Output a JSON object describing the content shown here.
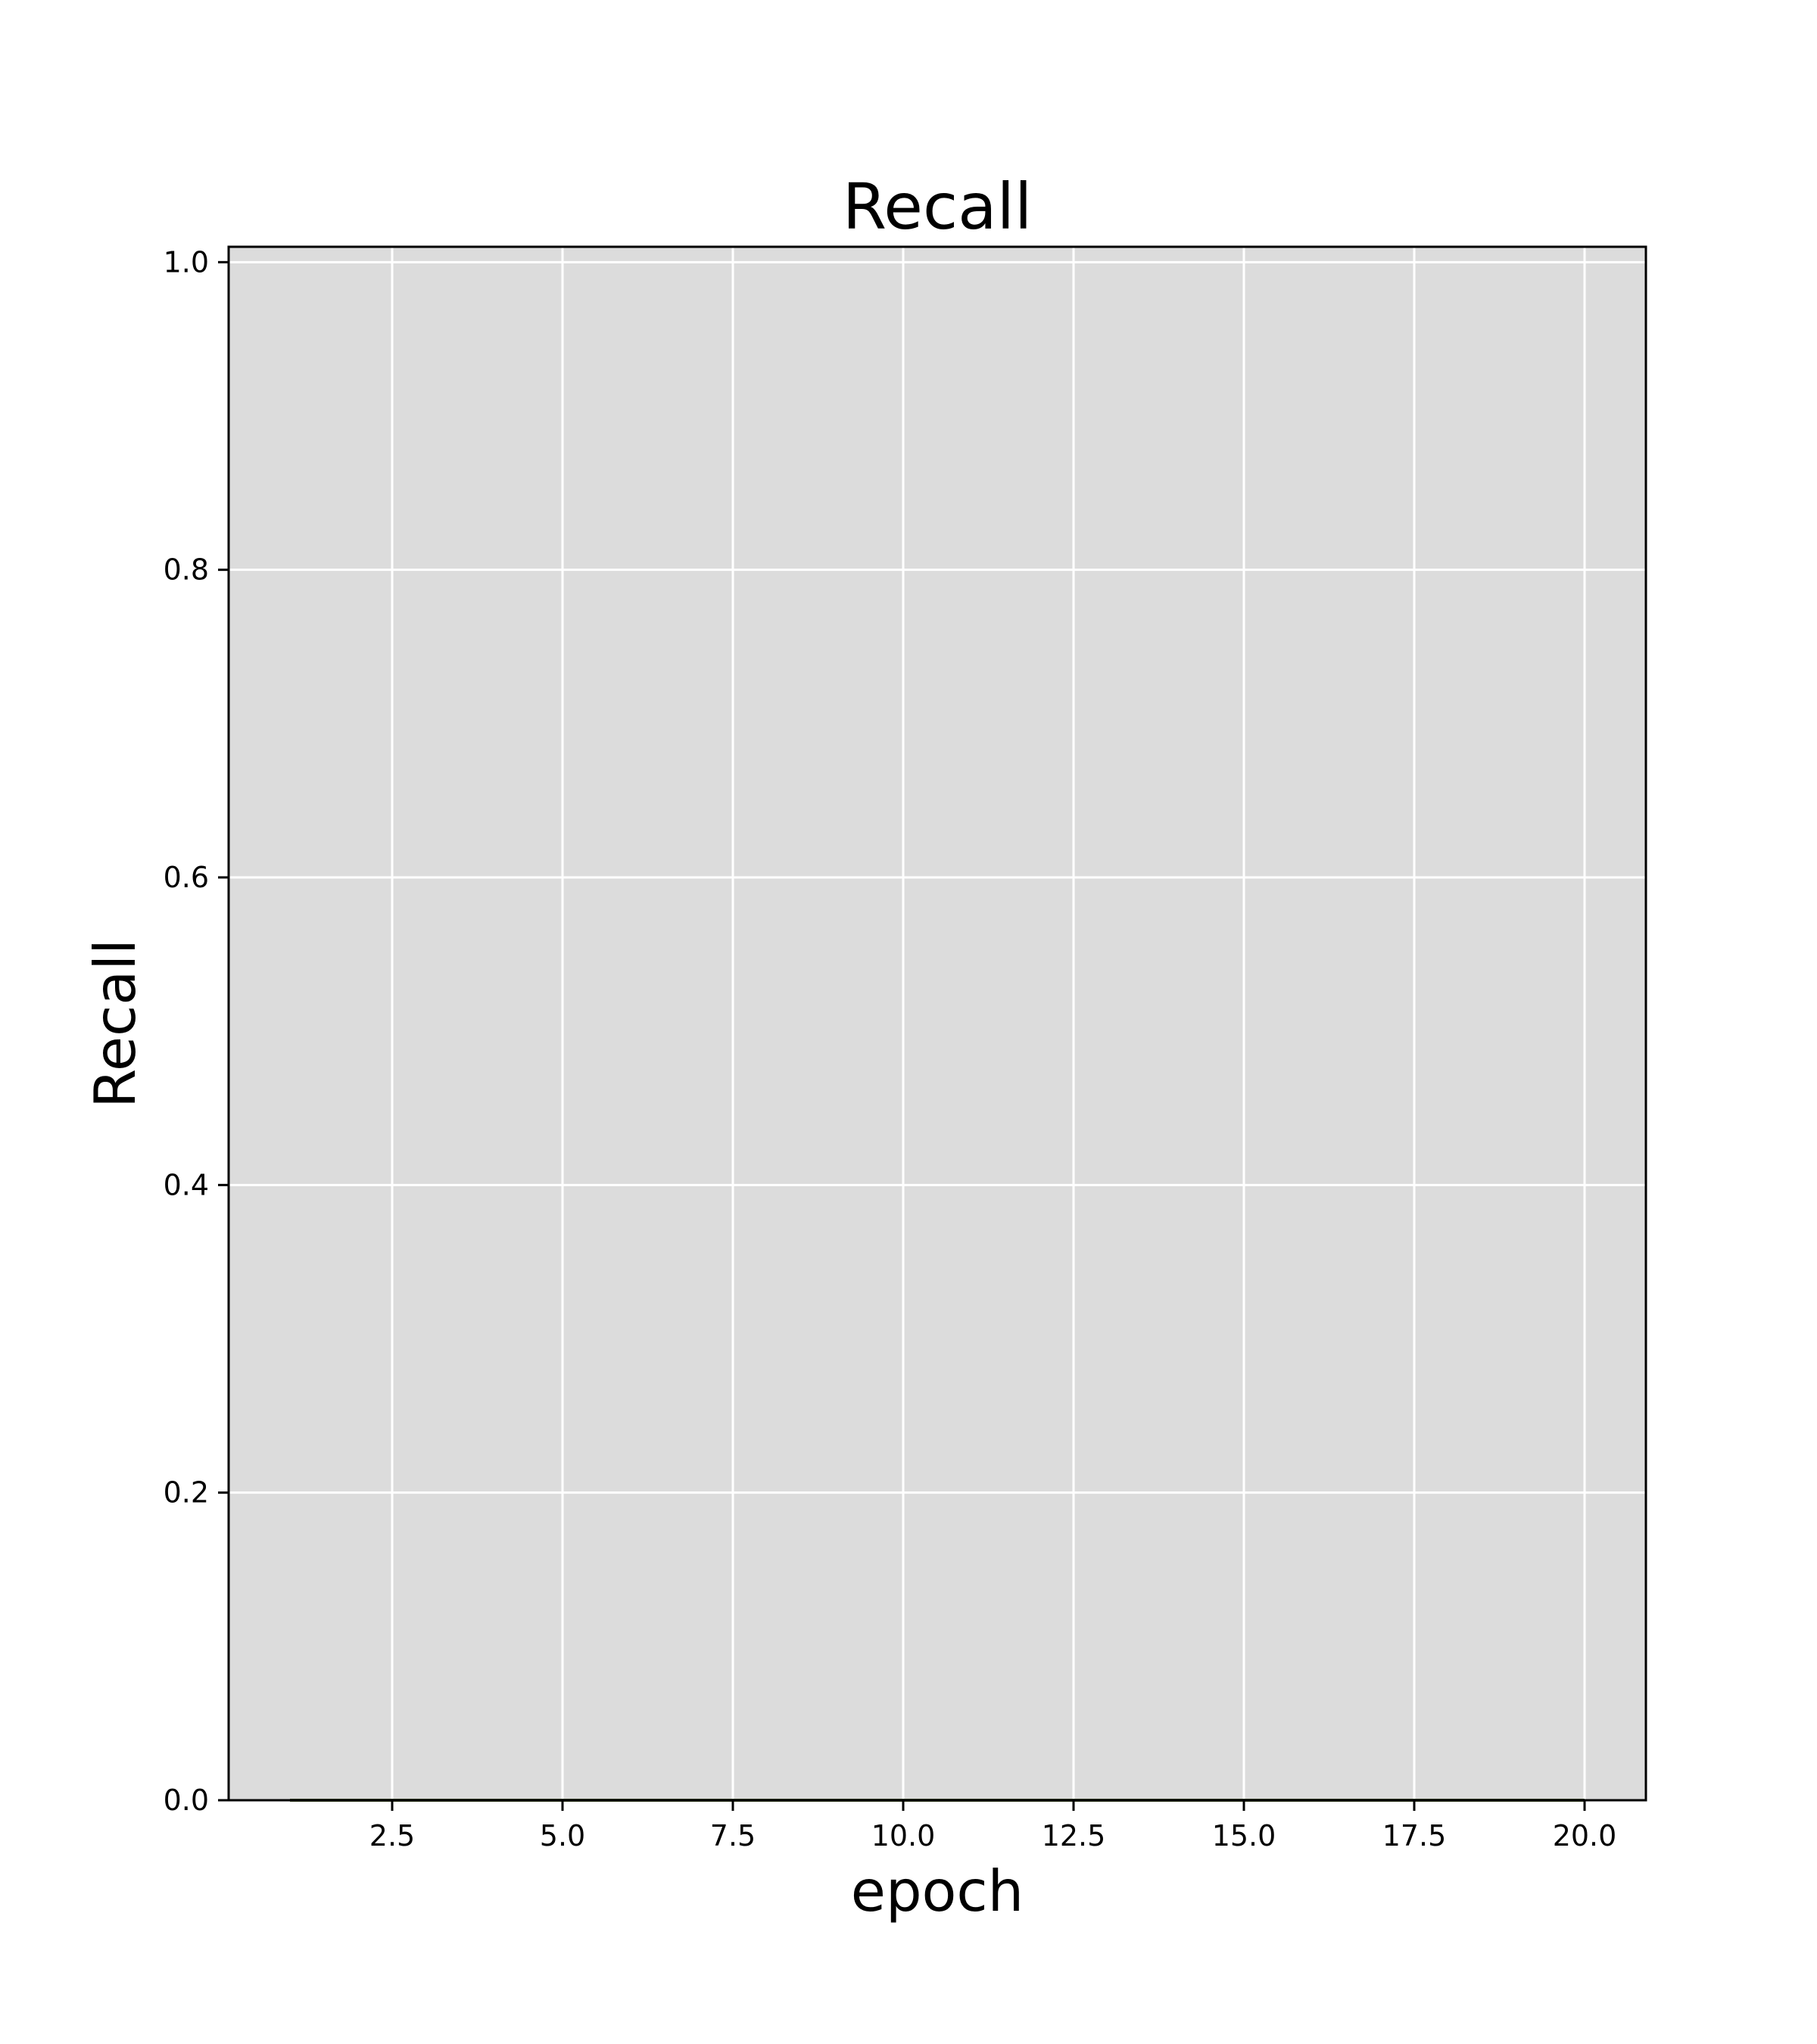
{
  "chart_data": {
    "type": "line",
    "title": "Recall",
    "xlabel": "epoch",
    "ylabel": "Recall",
    "xlim": [
      0.1,
      20.9
    ],
    "ylim": [
      0.0,
      1.01
    ],
    "x_ticks": [
      2.5,
      5.0,
      7.5,
      10.0,
      12.5,
      15.0,
      17.5,
      20.0
    ],
    "x_tick_labels": [
      "2.5",
      "5.0",
      "7.5",
      "10.0",
      "12.5",
      "15.0",
      "17.5",
      "20.0"
    ],
    "y_ticks": [
      0.0,
      0.2,
      0.4,
      0.6,
      0.8,
      1.0
    ],
    "y_tick_labels": [
      "0.0",
      "0.2",
      "0.4",
      "0.6",
      "0.8",
      "1.0"
    ],
    "grid": true,
    "series": [
      {
        "color": "#4a5a2a",
        "x": [
          1,
          2,
          3,
          4,
          5,
          6,
          7,
          8,
          9,
          10,
          11,
          12,
          13,
          14,
          15,
          16,
          17,
          18,
          19,
          20
        ],
        "values": [
          0,
          0,
          0,
          0,
          0,
          0,
          0,
          0,
          0,
          0,
          0,
          0,
          0,
          0,
          0,
          0,
          0,
          0,
          0,
          0
        ]
      }
    ]
  },
  "colors": {
    "plot_background": "#dcdcdc",
    "grid": "#ffffff",
    "axes": "#000000",
    "page_background": "#ffffff"
  }
}
